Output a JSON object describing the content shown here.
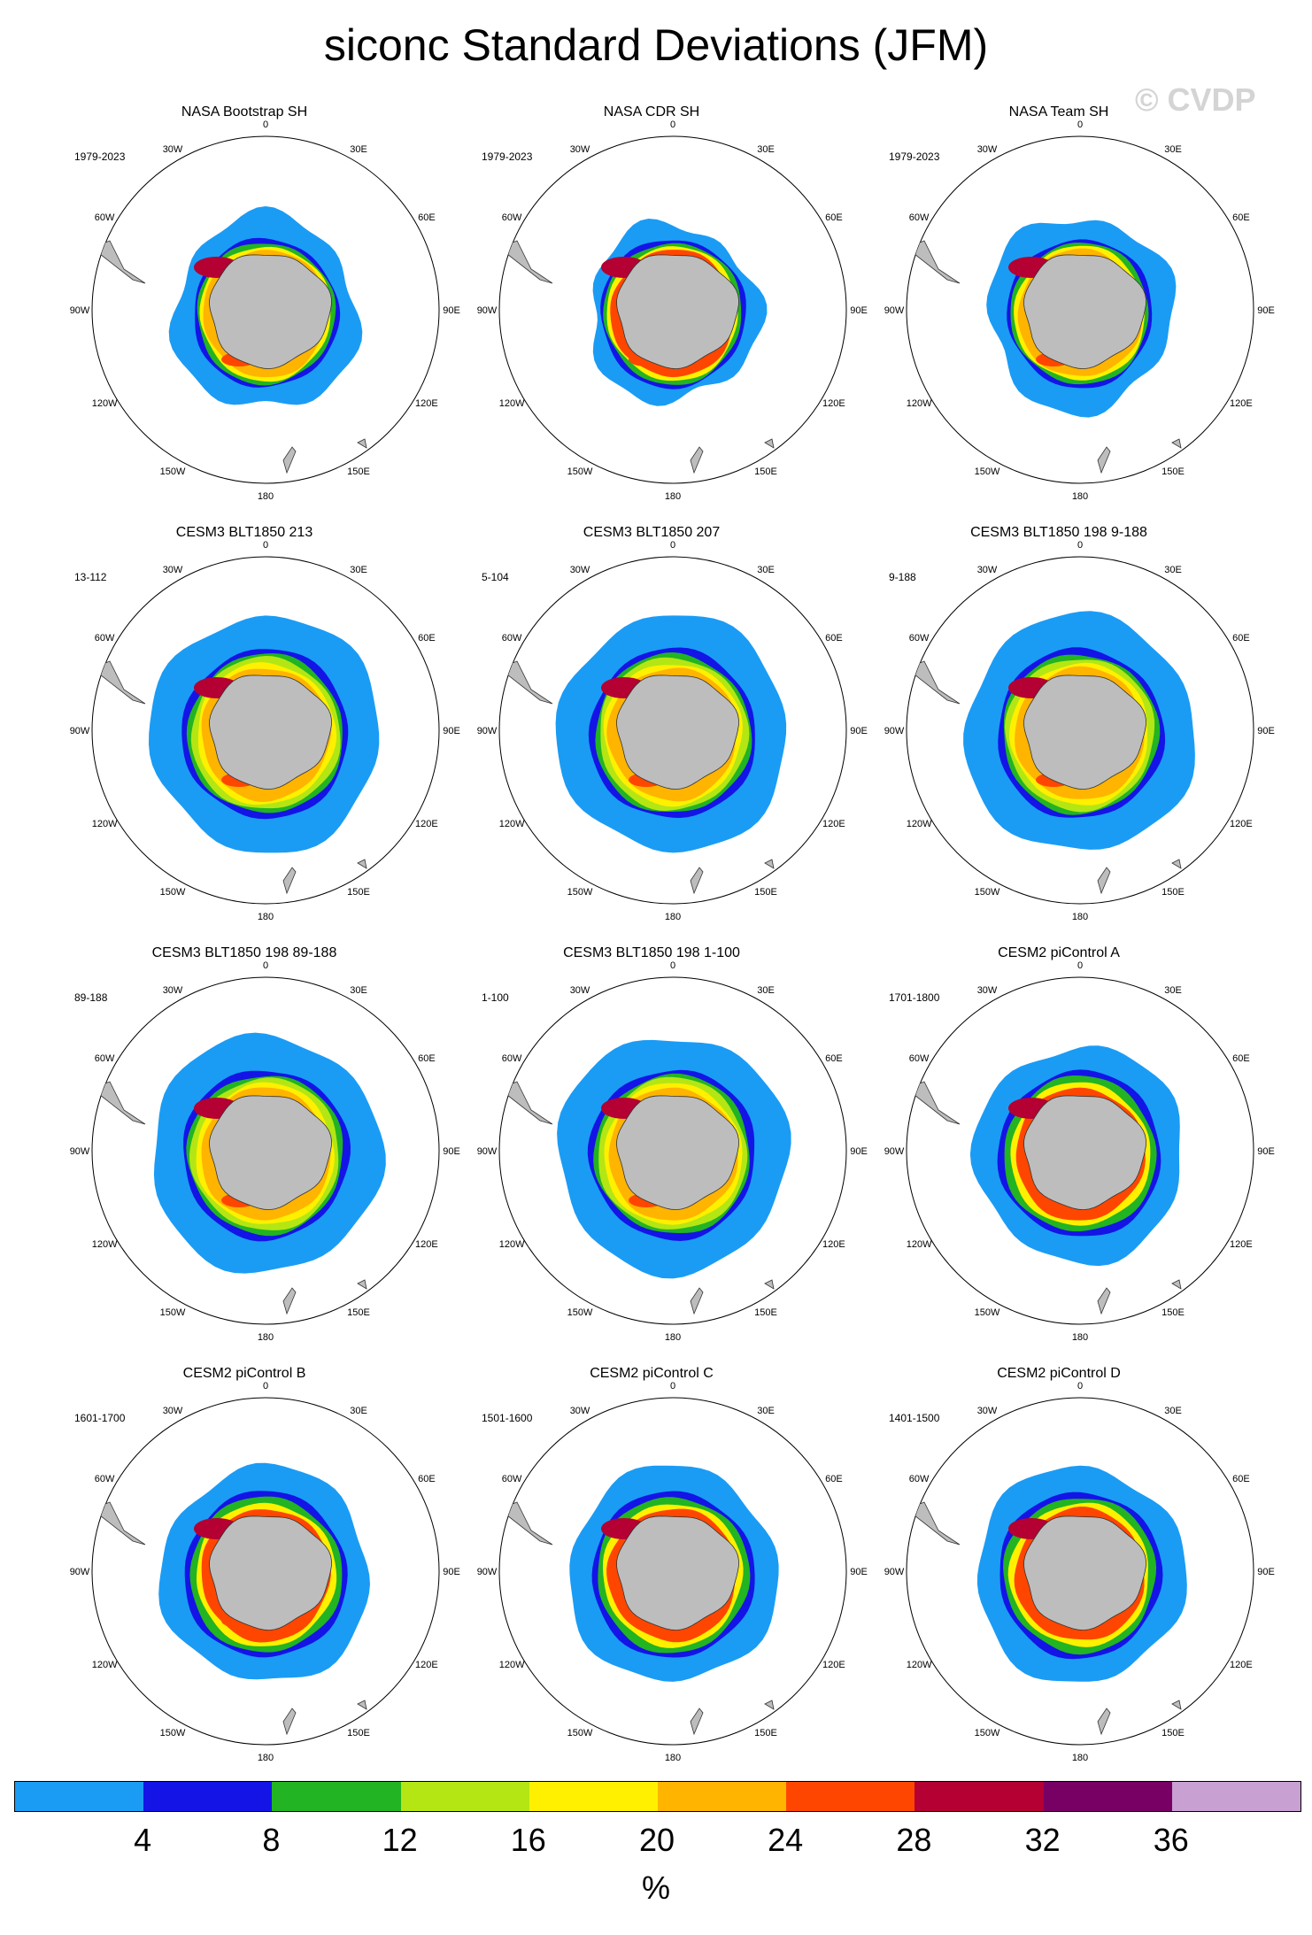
{
  "figure": {
    "title": "siconc Standard Deviations (JFM)",
    "watermark": "© CVDP"
  },
  "panels": [
    {
      "title": "NASA Bootstrap SH",
      "range": "1979-2023",
      "pattern": "obs1"
    },
    {
      "title": "NASA CDR SH",
      "range": "1979-2023",
      "pattern": "obs2"
    },
    {
      "title": "NASA Team SH",
      "range": "1979-2023",
      "pattern": "obs1"
    },
    {
      "title": "CESM3 BLT1850 213",
      "range": "13-112",
      "pattern": "model"
    },
    {
      "title": "CESM3 BLT1850 207",
      "range": "5-104",
      "pattern": "model"
    },
    {
      "title": "CESM3 BLT1850 198 9-188",
      "range": "9-188",
      "pattern": "model"
    },
    {
      "title": "CESM3 BLT1850 198 89-188",
      "range": "89-188",
      "pattern": "model"
    },
    {
      "title": "CESM3 BLT1850 198 1-100",
      "range": "1-100",
      "pattern": "model"
    },
    {
      "title": "CESM2 piControl A",
      "range": "1701-1800",
      "pattern": "cesm2"
    },
    {
      "title": "CESM2 piControl B",
      "range": "1601-1700",
      "pattern": "cesm2"
    },
    {
      "title": "CESM2 piControl C",
      "range": "1501-1600",
      "pattern": "cesm2"
    },
    {
      "title": "CESM2 piControl D",
      "range": "1401-1500",
      "pattern": "cesm2"
    }
  ],
  "longitude_labels": [
    "0",
    "30E",
    "60E",
    "90E",
    "120E",
    "150E",
    "180",
    "150W",
    "120W",
    "90W",
    "60W",
    "30W"
  ],
  "colorbar": {
    "colors": [
      "#1a9cf5",
      "#1414e6",
      "#22b422",
      "#b4e614",
      "#fff000",
      "#ffb400",
      "#ff4600",
      "#b40032",
      "#780064",
      "#c8a0d2"
    ],
    "ticks": [
      "4",
      "8",
      "12",
      "16",
      "20",
      "24",
      "28",
      "32",
      "36"
    ],
    "units": "%"
  },
  "land_color": "#bdbdbd"
}
